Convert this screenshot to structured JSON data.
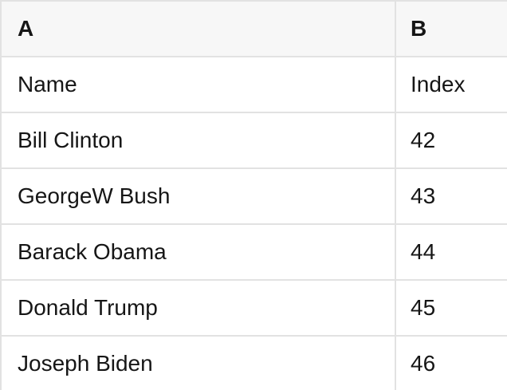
{
  "table": {
    "column_headers": [
      "A",
      "B"
    ],
    "field_labels": [
      "Name",
      "Index"
    ],
    "rows": [
      {
        "name": "Bill Clinton",
        "index": "42"
      },
      {
        "name": "GeorgeW Bush",
        "index": "43"
      },
      {
        "name": "Barack Obama",
        "index": "44"
      },
      {
        "name": "Donald Trump",
        "index": "45"
      },
      {
        "name": "Joseph Biden",
        "index": "46"
      }
    ]
  },
  "colors": {
    "header_bg": "#f7f7f7",
    "border": "#e2e2e2",
    "text": "#161616",
    "bg": "#ffffff"
  }
}
